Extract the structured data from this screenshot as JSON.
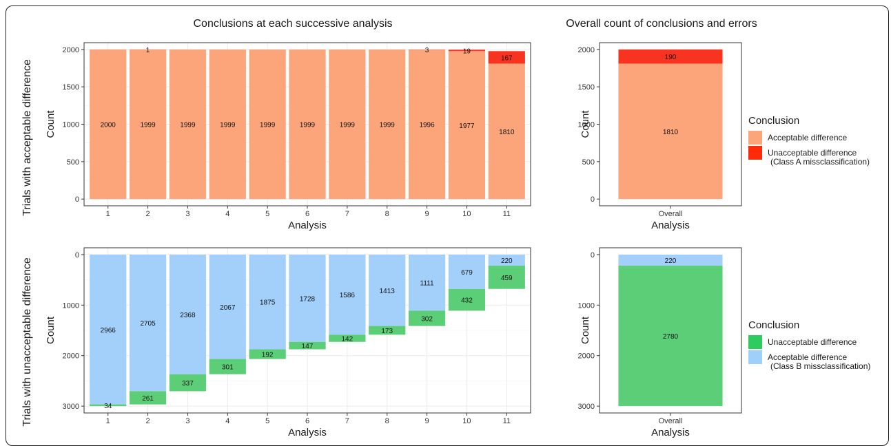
{
  "figure": {
    "left_title": "Conclusions at each successive analysis",
    "right_title": "Overall count of conclusions and errors",
    "row_labels": [
      "Trials with acceptable difference",
      "Trials with unacceptable difference"
    ]
  },
  "colors": {
    "salmon": "#fca47a",
    "red": "#f83420",
    "blue": "#a3cffb",
    "green": "#5cce78",
    "panel_border": "#333333",
    "grid": "#ebebeb"
  },
  "legends": [
    {
      "title": "Conclusion",
      "items": [
        {
          "label": "Acceptable difference",
          "color": "#fca47a"
        },
        {
          "label": "Unacceptable difference",
          "label2": "(Class A missclassification)",
          "color": "#ff2a0a"
        }
      ]
    },
    {
      "title": "Conclusion",
      "items": [
        {
          "label": "Unacceptable difference",
          "color": "#2ecc5f"
        },
        {
          "label": "Acceptable difference",
          "label2": "(Class B missclassification)",
          "color": "#9fd0fb"
        }
      ]
    }
  ],
  "chart_data": [
    {
      "type": "bar",
      "stacked": true,
      "title": "Conclusions at each successive analysis",
      "xlabel": "Analysis",
      "ylabel": "Count",
      "categories": [
        "1",
        "2",
        "3",
        "4",
        "5",
        "6",
        "7",
        "8",
        "9",
        "10",
        "11"
      ],
      "ylim": [
        0,
        2000
      ],
      "yticks": [
        0,
        500,
        1000,
        1500,
        2000
      ],
      "reversed": false,
      "grid": true,
      "series": [
        {
          "name": "Acceptable difference",
          "color": "#fca47a",
          "values": [
            2000,
            1999,
            1999,
            1999,
            1999,
            1999,
            1999,
            1999,
            1996,
            1977,
            1810
          ]
        },
        {
          "name": "Unacceptable difference (Class A missclassification)",
          "color": "#f83420",
          "values": [
            0,
            1,
            0,
            0,
            0,
            0,
            0,
            0,
            3,
            19,
            167
          ]
        }
      ]
    },
    {
      "type": "bar",
      "stacked": true,
      "xlabel": "Analysis",
      "ylabel": "Count",
      "categories": [
        "Overall"
      ],
      "ylim": [
        0,
        2000
      ],
      "yticks": [
        0,
        500,
        1000,
        1500,
        2000
      ],
      "reversed": false,
      "grid": false,
      "series": [
        {
          "name": "Acceptable difference",
          "color": "#fca47a",
          "values": [
            1810
          ]
        },
        {
          "name": "Unacceptable difference (Class A missclassification)",
          "color": "#f83420",
          "values": [
            190
          ]
        }
      ]
    },
    {
      "type": "bar",
      "stacked": true,
      "xlabel": "Analysis",
      "ylabel": "Count",
      "categories": [
        "1",
        "2",
        "3",
        "4",
        "5",
        "6",
        "7",
        "8",
        "9",
        "10",
        "11"
      ],
      "ylim": [
        0,
        3000
      ],
      "yticks": [
        0,
        1000,
        2000,
        3000
      ],
      "reversed": true,
      "grid": true,
      "series": [
        {
          "name": "Acceptable difference (Class B missclassification)",
          "color": "#a3cffb",
          "values": [
            2966,
            2705,
            2368,
            2067,
            1875,
            1728,
            1586,
            1413,
            1111,
            679,
            220
          ]
        },
        {
          "name": "Unacceptable difference",
          "color": "#5cce78",
          "values": [
            34,
            261,
            337,
            301,
            192,
            147,
            142,
            173,
            302,
            432,
            459
          ]
        }
      ]
    },
    {
      "type": "bar",
      "stacked": true,
      "xlabel": "Analysis",
      "ylabel": "Count",
      "categories": [
        "Overall"
      ],
      "ylim": [
        0,
        3000
      ],
      "yticks": [
        0,
        1000,
        2000,
        3000
      ],
      "reversed": true,
      "grid": false,
      "series": [
        {
          "name": "Acceptable difference (Class B missclassification)",
          "color": "#a3cffb",
          "values": [
            220
          ]
        },
        {
          "name": "Unacceptable difference",
          "color": "#5cce78",
          "values": [
            2780
          ]
        }
      ]
    }
  ]
}
